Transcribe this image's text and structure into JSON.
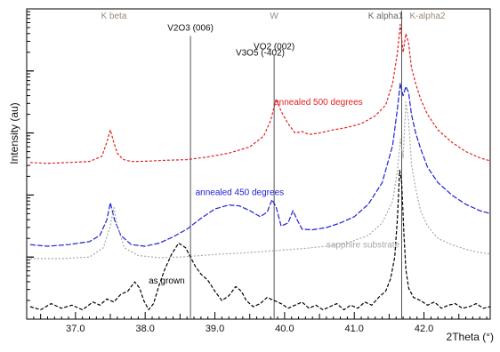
{
  "chart_data": {
    "type": "line",
    "xlabel": "2Theta (°)",
    "ylabel": "Intensity (au)",
    "xlim": [
      36.3,
      42.95
    ],
    "ylim": [
      0,
      100
    ],
    "y_scale": "log",
    "x_ticks": [
      37.0,
      38.0,
      39.0,
      40.0,
      41.0,
      42.0
    ],
    "x_tick_labels": [
      "37.0",
      "38.0",
      "39.0",
      "40.0",
      "41.0",
      "42.0"
    ],
    "grid": false,
    "top_reference_labels": [
      {
        "text": "K beta",
        "x": 37.55,
        "color": "#9a8a7a"
      },
      {
        "text": "W",
        "x": 39.85,
        "color": "#9a8a7a"
      },
      {
        "text": "K alpha1",
        "x": 41.45,
        "color": "#666666"
      },
      {
        "text": "K-alpha2",
        "x": 42.05,
        "color": "#9a8a7a"
      }
    ],
    "reference_lines": [
      {
        "label": "V2O3 (006)",
        "x": 38.65,
        "label_y": 93
      },
      {
        "label": "V3O5 (-402)",
        "x": 39.65,
        "label_y": 85,
        "line": false
      },
      {
        "label": "VO2 (002)",
        "x": 39.85,
        "label_y": 87
      },
      {
        "label": "",
        "x": 41.68,
        "label_y": 0
      }
    ],
    "series": [
      {
        "name": "annealed 500 degrees",
        "color": "#e02020",
        "dash": "3,2",
        "label_x": 39.85,
        "label_y": 69,
        "x": [
          36.35,
          36.6,
          36.9,
          37.2,
          37.38,
          37.45,
          37.5,
          37.55,
          37.6,
          37.68,
          37.8,
          38.0,
          38.3,
          38.6,
          38.9,
          39.2,
          39.5,
          39.7,
          39.8,
          39.88,
          39.95,
          40.05,
          40.15,
          40.25,
          40.35,
          40.5,
          40.7,
          40.9,
          41.1,
          41.3,
          41.45,
          41.55,
          41.62,
          41.66,
          41.7,
          41.74,
          41.78,
          41.82,
          41.88,
          41.95,
          42.05,
          42.2,
          42.4,
          42.6,
          42.8,
          42.95
        ],
        "y": [
          50.5,
          50.2,
          50.5,
          50.8,
          52.5,
          57,
          61,
          57,
          53.5,
          51.5,
          50.8,
          50.9,
          51.2,
          51.4,
          52.3,
          53.5,
          55.5,
          59,
          64,
          71,
          67,
          63,
          60,
          60.5,
          59.5,
          60,
          61,
          61.8,
          63,
          65.5,
          69,
          76,
          86,
          95,
          86,
          92,
          89,
          81,
          76,
          71,
          66,
          61,
          57,
          54,
          52,
          51
        ]
      },
      {
        "name": "annealed 450 degrees",
        "color": "#2020d0",
        "dash": "6,2",
        "label_x": 38.72,
        "label_y": 40,
        "x": [
          36.35,
          36.6,
          36.9,
          37.2,
          37.35,
          37.45,
          37.5,
          37.56,
          37.65,
          37.8,
          38.0,
          38.2,
          38.4,
          38.6,
          38.8,
          39.0,
          39.2,
          39.35,
          39.5,
          39.65,
          39.75,
          39.82,
          39.88,
          39.95,
          40.05,
          40.12,
          40.18,
          40.25,
          40.4,
          40.6,
          40.8,
          41.0,
          41.2,
          41.4,
          41.55,
          41.62,
          41.66,
          41.7,
          41.74,
          41.78,
          41.82,
          41.88,
          41.95,
          42.05,
          42.2,
          42.4,
          42.6,
          42.8,
          42.95
        ],
        "y": [
          24,
          23.5,
          24,
          25,
          27,
          32,
          37.5,
          32,
          27,
          24,
          23.5,
          24.5,
          26.5,
          29,
          32.5,
          35.5,
          36.8,
          36.5,
          35,
          33,
          34.5,
          38.5,
          36,
          30,
          31,
          35,
          32,
          29,
          28.8,
          29.5,
          31,
          33,
          37,
          44,
          56,
          68,
          76,
          72,
          75,
          73,
          66,
          60,
          55,
          49,
          44,
          40,
          37,
          35,
          34
        ]
      },
      {
        "name": "sapphire substrate",
        "color": "#a8a8a8",
        "dash": "2,2",
        "label_x": 40.6,
        "label_y": 23,
        "x": [
          36.35,
          36.8,
          37.2,
          37.4,
          37.5,
          37.55,
          37.6,
          37.7,
          37.9,
          38.2,
          38.5,
          38.8,
          39.1,
          39.4,
          39.7,
          40.0,
          40.3,
          40.6,
          40.9,
          41.2,
          41.4,
          41.55,
          41.62,
          41.66,
          41.7,
          41.74,
          41.78,
          41.82,
          41.88,
          41.95,
          42.05,
          42.2,
          42.4,
          42.6,
          42.8,
          42.95
        ],
        "y": [
          19.5,
          19.5,
          20,
          23,
          30,
          36,
          30,
          23,
          20.5,
          19.8,
          20,
          20.5,
          21,
          21.3,
          21.8,
          22.3,
          22.8,
          23.5,
          24.5,
          27,
          31,
          38,
          48,
          58,
          52,
          70,
          64,
          50,
          42,
          35,
          30,
          26,
          24,
          22.5,
          21.5,
          21
        ]
      },
      {
        "name": "as grown",
        "color": "#000000",
        "dash": "4,2",
        "label_x": 38.05,
        "label_y": 11.5,
        "x": [
          36.35,
          36.5,
          36.65,
          36.8,
          36.95,
          37.1,
          37.25,
          37.35,
          37.45,
          37.55,
          37.65,
          37.75,
          37.85,
          37.92,
          37.98,
          38.05,
          38.12,
          38.2,
          38.28,
          38.38,
          38.48,
          38.58,
          38.65,
          38.72,
          38.8,
          38.9,
          39.0,
          39.1,
          39.2,
          39.3,
          39.38,
          39.45,
          39.55,
          39.65,
          39.75,
          39.85,
          39.95,
          40.05,
          40.15,
          40.25,
          40.35,
          40.45,
          40.55,
          40.65,
          40.75,
          40.85,
          40.95,
          41.05,
          41.15,
          41.25,
          41.35,
          41.45,
          41.52,
          41.58,
          41.62,
          41.65,
          41.68,
          41.71,
          41.74,
          41.78,
          41.85,
          41.95,
          42.05,
          42.15,
          42.25,
          42.35,
          42.45,
          42.55,
          42.65,
          42.75,
          42.85,
          42.95
        ],
        "y": [
          4,
          3,
          5,
          3.5,
          4.5,
          3,
          5.5,
          4.5,
          6.5,
          5.5,
          8,
          9,
          12,
          10,
          6,
          3,
          5,
          11,
          16,
          21,
          24.5,
          23,
          20,
          17,
          14.5,
          12.5,
          9,
          6,
          7.5,
          10.5,
          9,
          6,
          4,
          5,
          7,
          6,
          5,
          3.5,
          4.5,
          5.5,
          3.5,
          4.5,
          3,
          4,
          5,
          3,
          4.5,
          3.5,
          5.5,
          4.5,
          7,
          9,
          13,
          20,
          33,
          48,
          44,
          28,
          16,
          10,
          7,
          6,
          4.5,
          5.5,
          3.5,
          4.5,
          5,
          3.5,
          4,
          5,
          3.5,
          4
        ]
      }
    ]
  }
}
